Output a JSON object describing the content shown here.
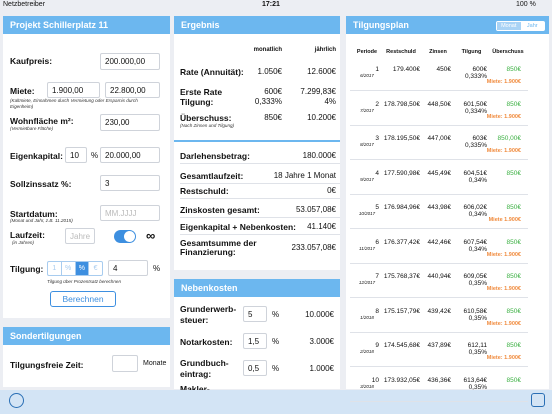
{
  "status": {
    "carrier": "Netzbetreiber",
    "time": "17:21",
    "battery": "100 %"
  },
  "project": {
    "title": "Projekt Schillerplatz 11",
    "kaufpreis": {
      "label": "Kaufpreis:",
      "value": "200.000,00"
    },
    "miete": {
      "label": "Miete:",
      "monthly": "1.900,00",
      "yearly": "22.800,00",
      "note": "(Kaltmiete, Einnahmen durch Vermietung oder Ersparnis durch Eigenheim)"
    },
    "wohnflaeche": {
      "label": "Wohnfläche m²:",
      "value": "230,00",
      "note": "(Vermietbare Fläche)"
    },
    "eigenkapital": {
      "label": "Eigenkapital:",
      "percent": "10",
      "percent_sign": "%",
      "value": "20.000,00"
    },
    "sollzins": {
      "label": "Sollzinssatz %:",
      "value": "3"
    },
    "startdatum": {
      "label": "Startdatum:",
      "placeholder": "MM.JJJJ",
      "note": "(Monat und Jahr, z.B. 11.2015)"
    },
    "laufzeit": {
      "label": "Laufzeit:",
      "placeholder": "Jahre",
      "note": "(in Jahren)",
      "infinity": "∞"
    },
    "tilgung": {
      "label": "Tilgung:",
      "segments": [
        "1",
        "%",
        "%",
        "€"
      ],
      "value": "4",
      "unit": "%",
      "note": "Tilgung über Prozentsatz berechnen"
    },
    "button": "Berechnen"
  },
  "sondertilgungen": {
    "title": "Sondertilgungen",
    "label": "Tilgungsfreie Zeit:",
    "unit": "Monate"
  },
  "ergebnis": {
    "title": "Ergebnis",
    "col_monthly": "monatlich",
    "col_yearly": "jährlich",
    "rate": {
      "label": "Rate (Annuität):",
      "monthly": "1.050€",
      "yearly": "12.600€"
    },
    "tilgung": {
      "label1": "Erste Rate",
      "label2": "Tilgung:",
      "monthly": "600€",
      "monthly_pct": "0,333%",
      "yearly": "7.299,83€",
      "yearly_pct": "4%"
    },
    "ueberschuss": {
      "label": "Überschuss:",
      "note": "(Nach Zinsen und Tilgung)",
      "monthly": "850€",
      "yearly": "10.200€"
    },
    "list": [
      [
        "Darlehensbetrag:",
        "180.000€"
      ],
      [
        "Gesamtlaufzeit:",
        "18 Jahre 1 Monat"
      ],
      [
        "Restschuld:",
        "0€"
      ],
      [
        "Zinskosten gesamt:",
        "53.057,08€"
      ],
      [
        "Eigenkapital + Nebenkosten:",
        "41.140€"
      ]
    ],
    "total": {
      "label1": "Gesamtsumme der",
      "label2": "Finanzierung:",
      "value": "233.057,08€"
    }
  },
  "nebenkosten": {
    "title": "Nebenkosten",
    "rows": [
      {
        "label1": "Grunderwerb-",
        "label2": "steuer:",
        "percent": "5",
        "sign": "%",
        "value": "10.000€"
      },
      {
        "label1": "Notarkosten:",
        "label2": "",
        "percent": "1,5",
        "sign": "%",
        "value": "3.000€"
      },
      {
        "label1": "Grundbuch-",
        "label2": "eintrag:",
        "percent": "0,5",
        "sign": "%",
        "value": "1.000€"
      }
    ],
    "cut": "Makler-"
  },
  "tilgungsplan": {
    "title": "Tilgungsplan",
    "toggle": [
      "Monat",
      "Jahr"
    ],
    "columns": [
      "Periode",
      "Restschuld",
      "Zinsen",
      "Tilgung",
      "Überschuss"
    ],
    "rows": [
      {
        "n": "1",
        "date": "6/2017",
        "rest": "179.400€",
        "zinsen": "450€",
        "tilgung": "600€",
        "pct": "0,333%",
        "ueb": "850€",
        "miete": "Miete: 1.900€"
      },
      {
        "n": "2",
        "date": "7/2017",
        "rest": "178.798,50€",
        "zinsen": "448,50€",
        "tilgung": "601,50€",
        "pct": "0,334%",
        "ueb": "850€",
        "miete": "Miete: 1.900€"
      },
      {
        "n": "3",
        "date": "8/2017",
        "rest": "178.195,50€",
        "zinsen": "447,00€",
        "tilgung": "603€",
        "pct": "0,335%",
        "ueb": "850,00€",
        "miete": "Miete: 1.900€"
      },
      {
        "n": "4",
        "date": "9/2017",
        "rest": "177.590,98€",
        "zinsen": "445,49€",
        "tilgung": "604,51€",
        "pct": "0,34%",
        "ueb": "850€"
      },
      {
        "n": "5",
        "date": "10/2017",
        "rest": "176.984,96€",
        "zinsen": "443,98€",
        "tilgung": "606,02€",
        "pct": "0,34%",
        "ueb": "850€",
        "miete": "Miete 1.900€"
      },
      {
        "n": "6",
        "date": "11/2017",
        "rest": "176.377,42€",
        "zinsen": "442,46€",
        "tilgung": "607,54€",
        "pct": "0,34%",
        "ueb": "850€",
        "miete": "Miete: 1.900€"
      },
      {
        "n": "7",
        "date": "12/2017",
        "rest": "175.768,37€",
        "zinsen": "440,94€",
        "tilgung": "609,05€",
        "pct": "0,35%",
        "ueb": "850€",
        "miete": "Miete: 1.900€"
      },
      {
        "n": "8",
        "date": "1/2018",
        "rest": "175.157,79€",
        "zinsen": "439,42€",
        "tilgung": "610,58€",
        "pct": "0,35%",
        "ueb": "850€",
        "miete": "Miete: 1.900€"
      },
      {
        "n": "9",
        "date": "2/2018",
        "rest": "174.545,68€",
        "zinsen": "437,89€",
        "tilgung": "612,11",
        "pct": "0,35%",
        "ueb": "850€",
        "miete": "Miete: 1.900€"
      },
      {
        "n": "10",
        "date": "3/2018",
        "rest": "173.932,05€",
        "zinsen": "436,36€",
        "tilgung": "613,64€",
        "pct": "0,35%",
        "ueb": "850€"
      }
    ]
  }
}
